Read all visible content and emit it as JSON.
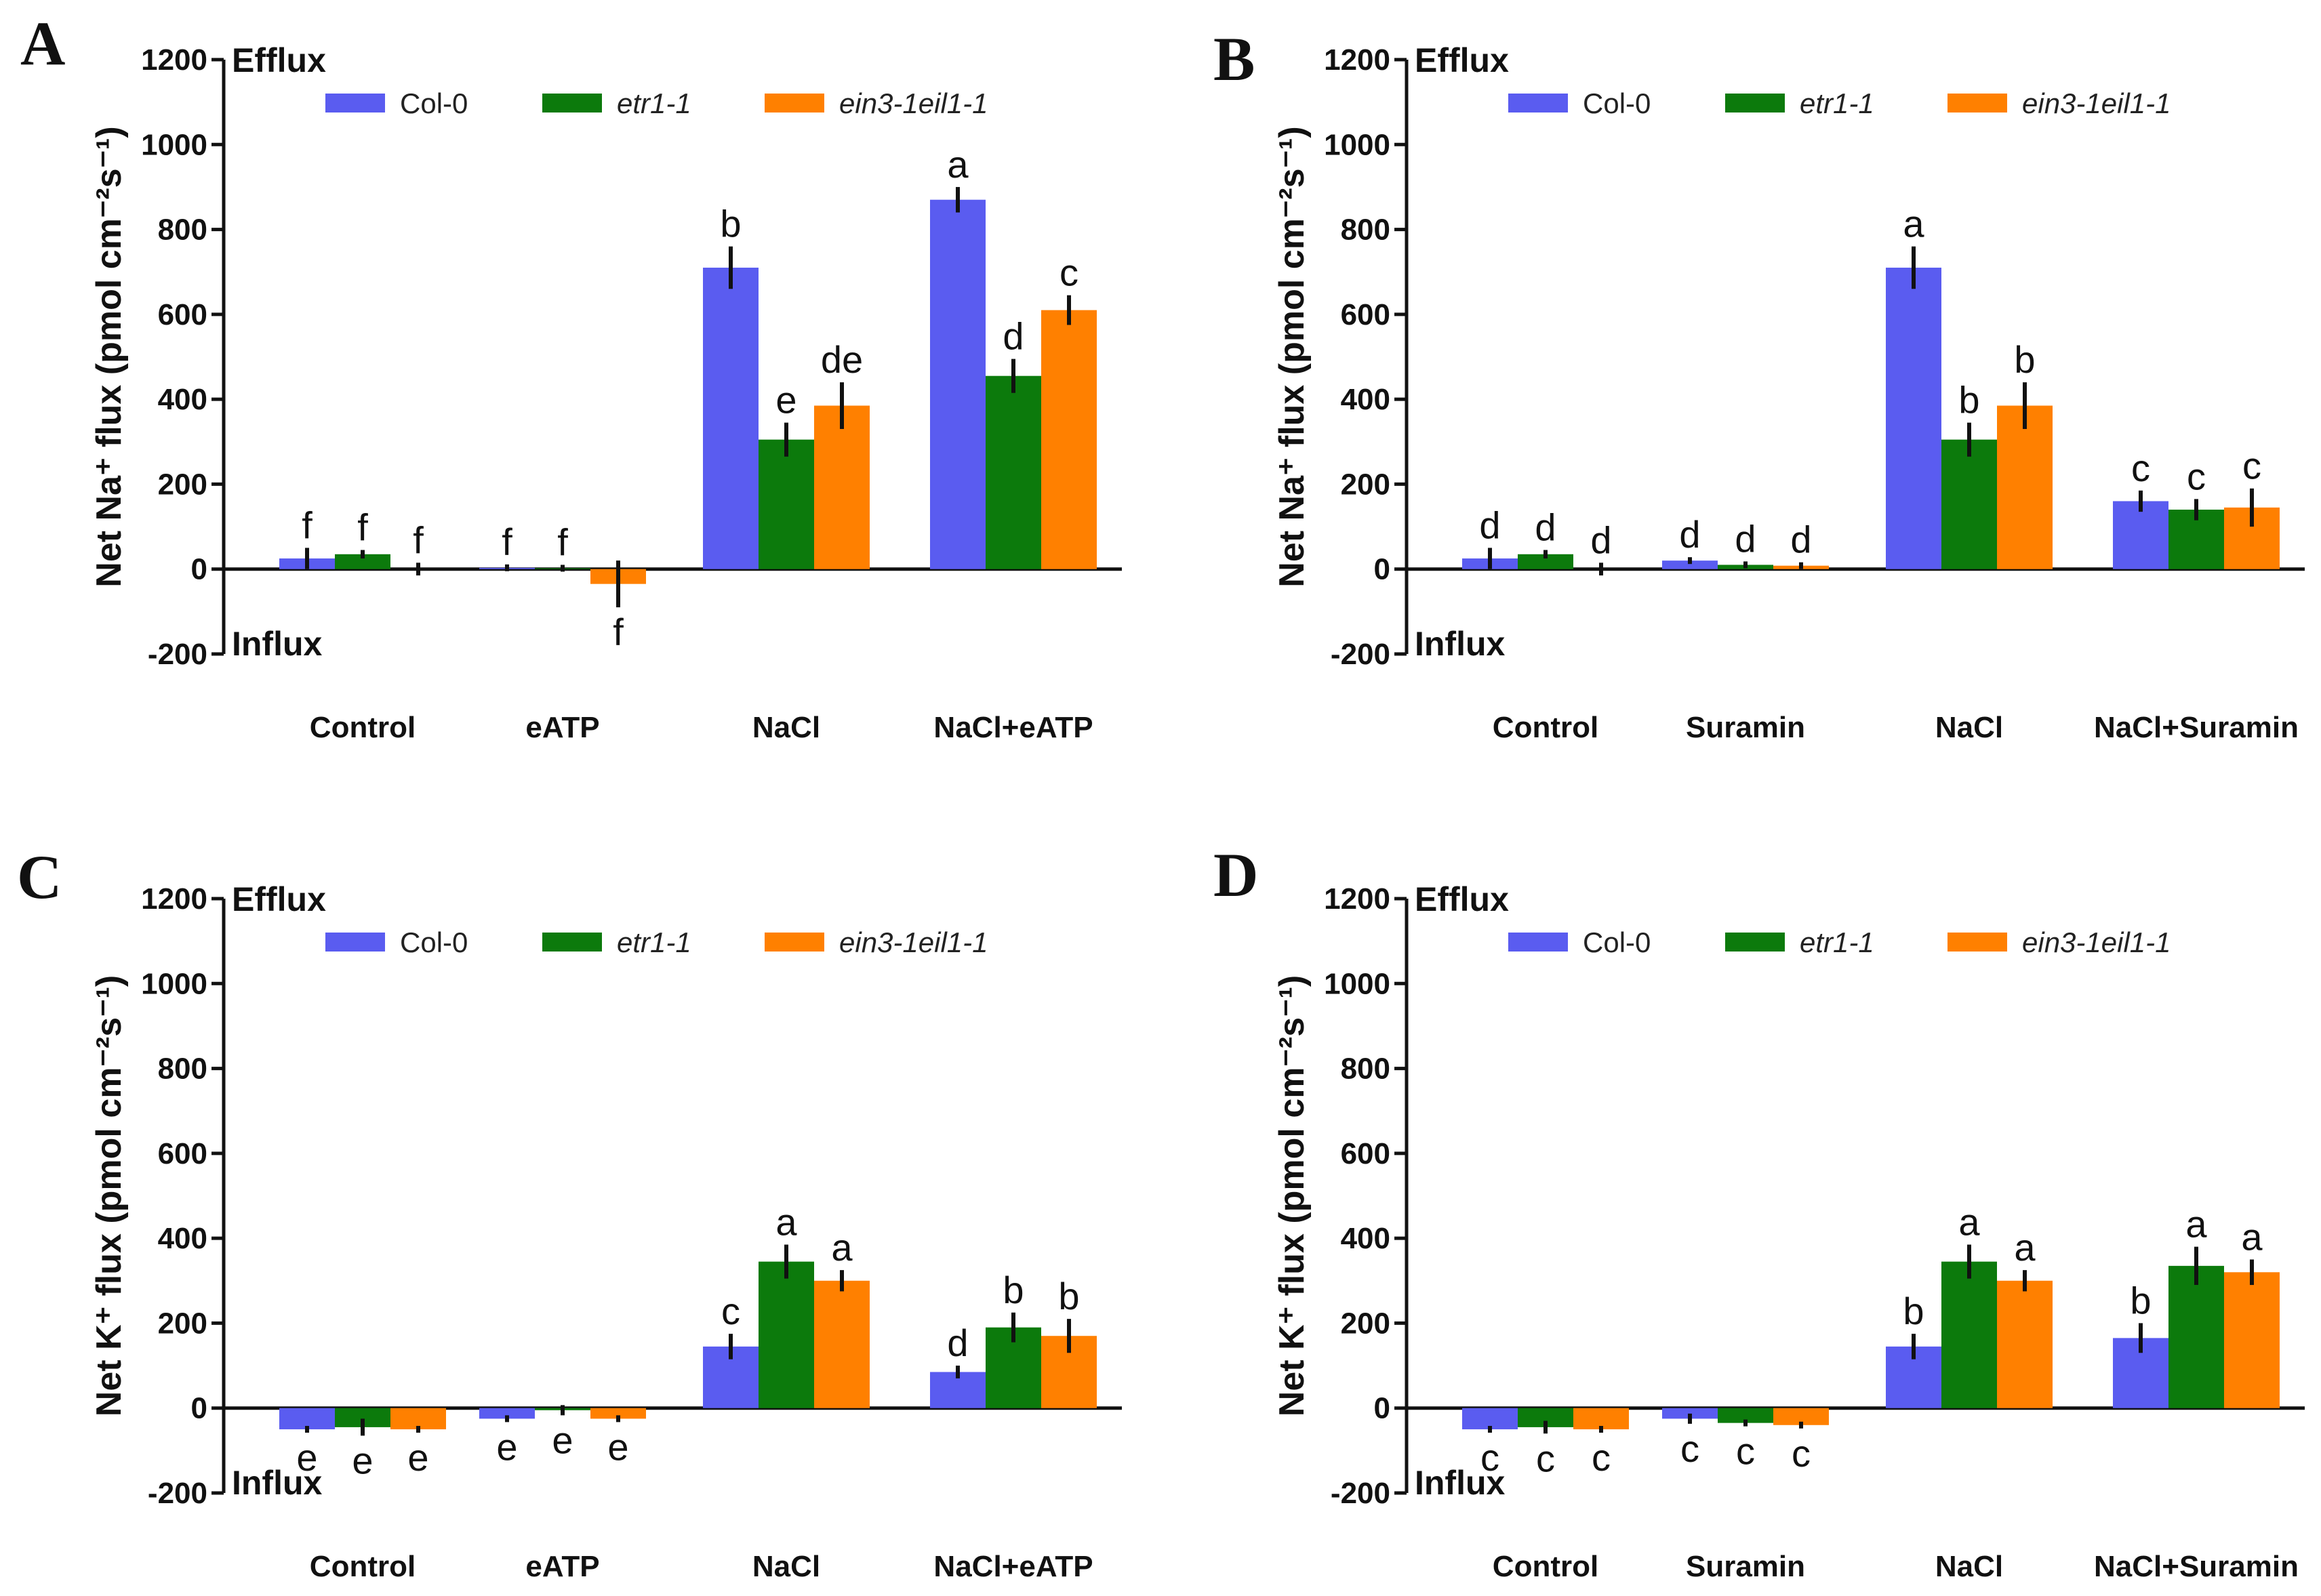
{
  "legend_series": [
    {
      "name": "Col-0",
      "italic": false,
      "color": "#5a5cf0"
    },
    {
      "name": "etr1-1",
      "italic": true,
      "color": "#0c7a0c"
    },
    {
      "name": "ein3-1eil1-1",
      "italic": true,
      "color": "#ff8000"
    }
  ],
  "chart_data": [
    {
      "panel": "A",
      "type": "bar",
      "ylabel": "Net Na⁺ flux (pmol cm⁻²s⁻¹)",
      "efflux_label": "Efflux",
      "influx_label": "Influx",
      "ylim": [
        -200,
        1200
      ],
      "yticks": [
        -200,
        0,
        200,
        400,
        600,
        800,
        1000,
        1200
      ],
      "categories": [
        "Control",
        "eATP",
        "NaCl",
        "NaCl+eATP"
      ],
      "series": [
        {
          "name": "Col-0",
          "values": [
            25,
            3,
            710,
            870
          ],
          "errors": [
            25,
            8,
            50,
            30
          ],
          "letters": [
            "f",
            "f",
            "b",
            "a"
          ]
        },
        {
          "name": "etr1-1",
          "values": [
            35,
            2,
            305,
            455
          ],
          "errors": [
            10,
            8,
            40,
            40
          ],
          "letters": [
            "f",
            "f",
            "e",
            "d"
          ]
        },
        {
          "name": "ein3-1eil1-1",
          "values": [
            0,
            -35,
            385,
            610
          ],
          "errors": [
            15,
            55,
            55,
            35
          ],
          "letters": [
            "f",
            "f",
            "de",
            "c"
          ]
        }
      ]
    },
    {
      "panel": "B",
      "type": "bar",
      "ylabel": "Net Na⁺ flux (pmol cm⁻²s⁻¹)",
      "efflux_label": "Efflux",
      "influx_label": "Influx",
      "ylim": [
        -200,
        1200
      ],
      "yticks": [
        -200,
        0,
        200,
        400,
        600,
        800,
        1000,
        1200
      ],
      "categories": [
        "Control",
        "Suramin",
        "NaCl",
        "NaCl+Suramin"
      ],
      "series": [
        {
          "name": "Col-0",
          "values": [
            25,
            20,
            710,
            160
          ],
          "errors": [
            25,
            8,
            50,
            25
          ],
          "letters": [
            "d",
            "d",
            "a",
            "c"
          ]
        },
        {
          "name": "etr1-1",
          "values": [
            35,
            10,
            305,
            140
          ],
          "errors": [
            10,
            8,
            40,
            25
          ],
          "letters": [
            "d",
            "d",
            "b",
            "c"
          ]
        },
        {
          "name": "ein3-1eil1-1",
          "values": [
            0,
            8,
            385,
            145
          ],
          "errors": [
            15,
            8,
            55,
            45
          ],
          "letters": [
            "d",
            "d",
            "b",
            "c"
          ]
        }
      ]
    },
    {
      "panel": "C",
      "type": "bar",
      "ylabel": "Net K⁺ flux (pmol cm⁻²s⁻¹)",
      "efflux_label": "Efflux",
      "influx_label": "Influx",
      "ylim": [
        -200,
        1200
      ],
      "yticks": [
        -200,
        0,
        200,
        400,
        600,
        800,
        1000,
        1200
      ],
      "categories": [
        "Control",
        "eATP",
        "NaCl",
        "NaCl+eATP"
      ],
      "series": [
        {
          "name": "Col-0",
          "values": [
            -50,
            -25,
            145,
            85
          ],
          "errors": [
            8,
            8,
            30,
            15
          ],
          "letters": [
            "e",
            "e",
            "c",
            "d"
          ]
        },
        {
          "name": "etr1-1",
          "values": [
            -45,
            -5,
            345,
            190
          ],
          "errors": [
            20,
            12,
            40,
            35
          ],
          "letters": [
            "e",
            "e",
            "a",
            "b"
          ]
        },
        {
          "name": "ein3-1eil1-1",
          "values": [
            -50,
            -25,
            300,
            170
          ],
          "errors": [
            8,
            8,
            25,
            40
          ],
          "letters": [
            "e",
            "e",
            "a",
            "b"
          ]
        }
      ]
    },
    {
      "panel": "D",
      "type": "bar",
      "ylabel": "Net K⁺ flux (pmol cm⁻²s⁻¹)",
      "efflux_label": "Efflux",
      "influx_label": "Influx",
      "ylim": [
        -200,
        1200
      ],
      "yticks": [
        -200,
        0,
        200,
        400,
        600,
        800,
        1000,
        1200
      ],
      "categories": [
        "Control",
        "Suramin",
        "NaCl",
        "NaCl+Suramin"
      ],
      "series": [
        {
          "name": "Col-0",
          "values": [
            -50,
            -25,
            145,
            165
          ],
          "errors": [
            8,
            12,
            30,
            35
          ],
          "letters": [
            "c",
            "c",
            "b",
            "b"
          ]
        },
        {
          "name": "etr1-1",
          "values": [
            -45,
            -35,
            345,
            335
          ],
          "errors": [
            15,
            8,
            40,
            45
          ],
          "letters": [
            "c",
            "c",
            "a",
            "a"
          ]
        },
        {
          "name": "ein3-1eil1-1",
          "values": [
            -50,
            -40,
            300,
            320
          ],
          "errors": [
            8,
            8,
            25,
            30
          ],
          "letters": [
            "c",
            "c",
            "a",
            "a"
          ]
        }
      ]
    }
  ]
}
